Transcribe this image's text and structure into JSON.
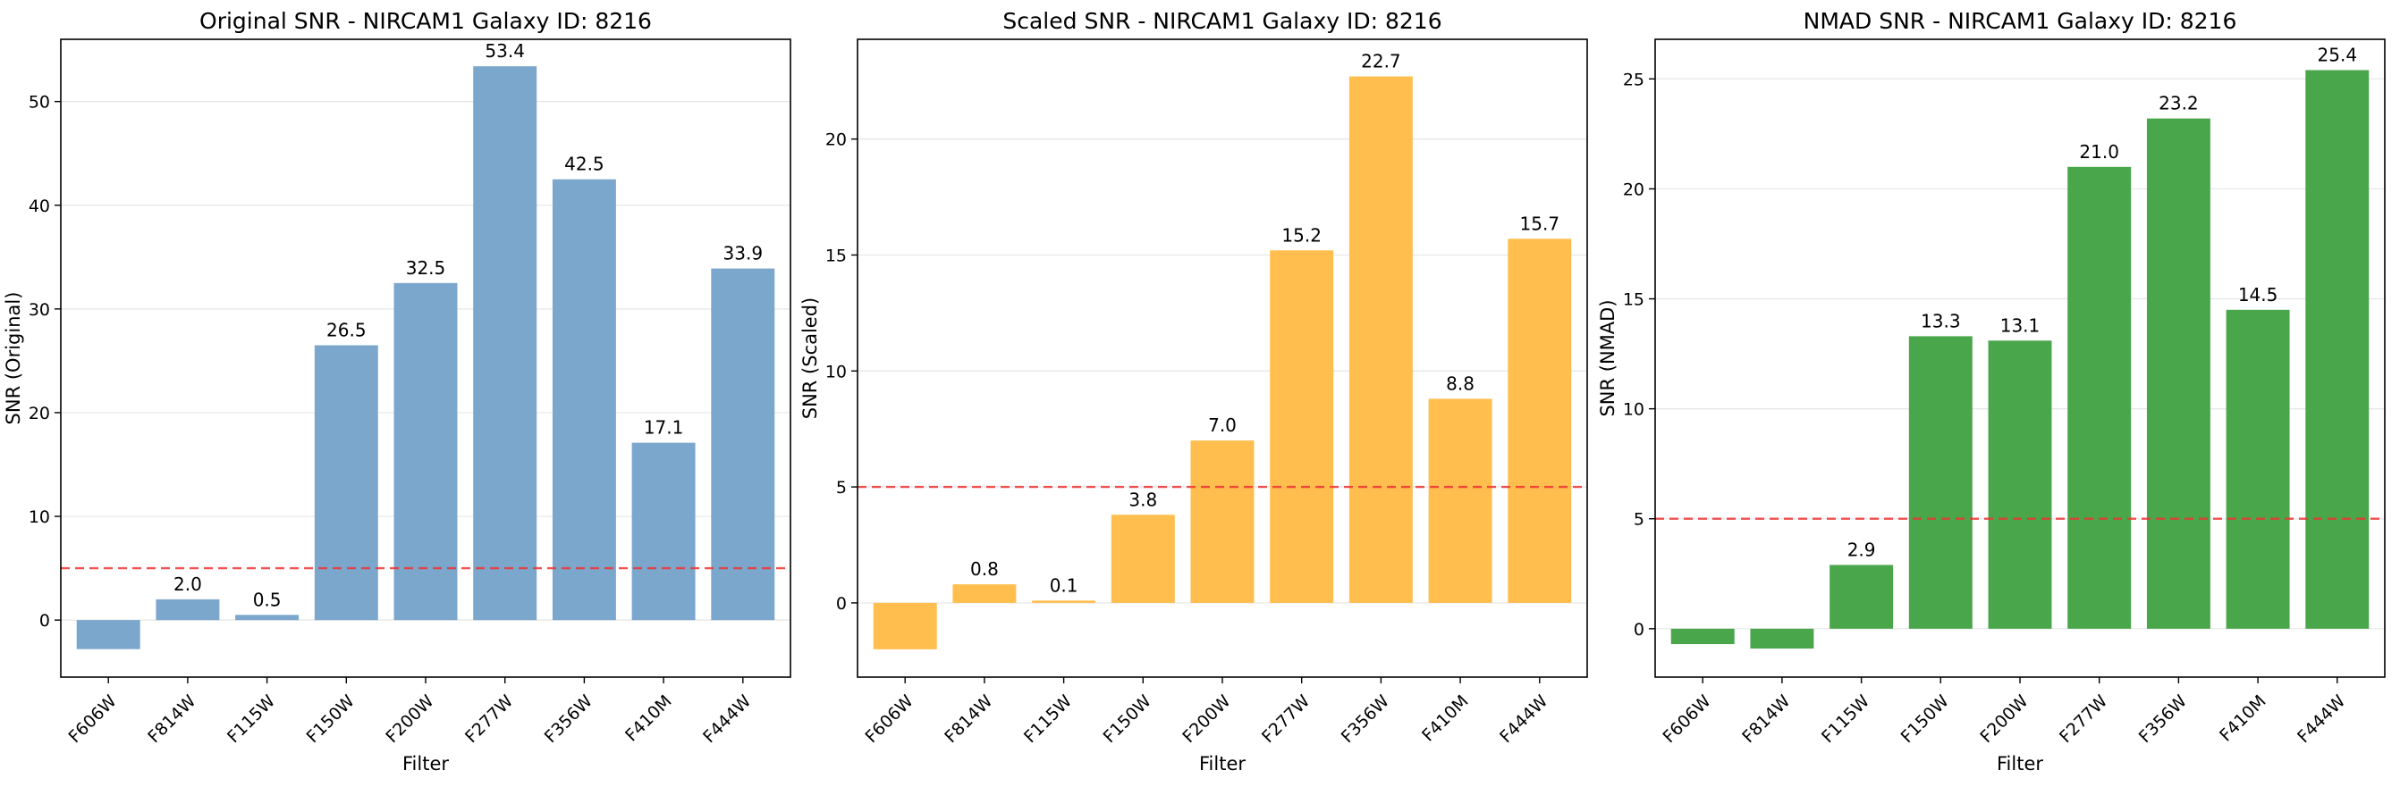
{
  "chart_data": [
    {
      "type": "bar",
      "title": "Original SNR - NIRCAM1 Galaxy ID: 8216",
      "xlabel": "Filter",
      "ylabel": "SNR (Original)",
      "categories": [
        "F606W",
        "F814W",
        "F115W",
        "F150W",
        "F200W",
        "F277W",
        "F356W",
        "F410M",
        "F444W"
      ],
      "values": [
        -2.8,
        2.0,
        0.5,
        26.5,
        32.5,
        53.4,
        42.5,
        17.1,
        33.9
      ],
      "labels": [
        "",
        "2.0",
        "0.5",
        "26.5",
        "32.5",
        "53.4",
        "42.5",
        "17.1",
        "33.9"
      ],
      "yticks": [
        0,
        10,
        20,
        30,
        40,
        50
      ],
      "ylim": [
        -5.5,
        56.0
      ],
      "threshold": 5,
      "color": "#7ba7cc",
      "threshold_color": "#ee3333",
      "grid": "y"
    },
    {
      "type": "bar",
      "title": "Scaled SNR - NIRCAM1 Galaxy ID: 8216",
      "xlabel": "Filter",
      "ylabel": "SNR (Scaled)",
      "categories": [
        "F606W",
        "F814W",
        "F115W",
        "F150W",
        "F200W",
        "F277W",
        "F356W",
        "F410M",
        "F444W"
      ],
      "values": [
        -2.0,
        0.8,
        0.1,
        3.8,
        7.0,
        15.2,
        22.7,
        8.8,
        15.7
      ],
      "labels": [
        "",
        "0.8",
        "0.1",
        "3.8",
        "7.0",
        "15.2",
        "22.7",
        "8.8",
        "15.7"
      ],
      "yticks": [
        0,
        5,
        10,
        15,
        20
      ],
      "ylim": [
        -3.2,
        24.3
      ],
      "threshold": 5,
      "color": "#ffbe4d",
      "threshold_color": "#ee3333",
      "grid": "y"
    },
    {
      "type": "bar",
      "title": "NMAD SNR - NIRCAM1 Galaxy ID: 8216",
      "xlabel": "Filter",
      "ylabel": "SNR (NMAD)",
      "categories": [
        "F606W",
        "F814W",
        "F115W",
        "F150W",
        "F200W",
        "F277W",
        "F356W",
        "F410M",
        "F444W"
      ],
      "values": [
        -0.7,
        -0.9,
        2.9,
        13.3,
        13.1,
        21.0,
        23.2,
        14.5,
        25.4
      ],
      "labels": [
        "",
        "",
        "2.9",
        "13.3",
        "13.1",
        "21.0",
        "23.2",
        "14.5",
        "25.4"
      ],
      "yticks": [
        0,
        5,
        10,
        15,
        20,
        25
      ],
      "ylim": [
        -2.2,
        26.8
      ],
      "threshold": 5,
      "color": "#4aa64a",
      "threshold_color": "#ee3333",
      "grid": "y"
    }
  ]
}
